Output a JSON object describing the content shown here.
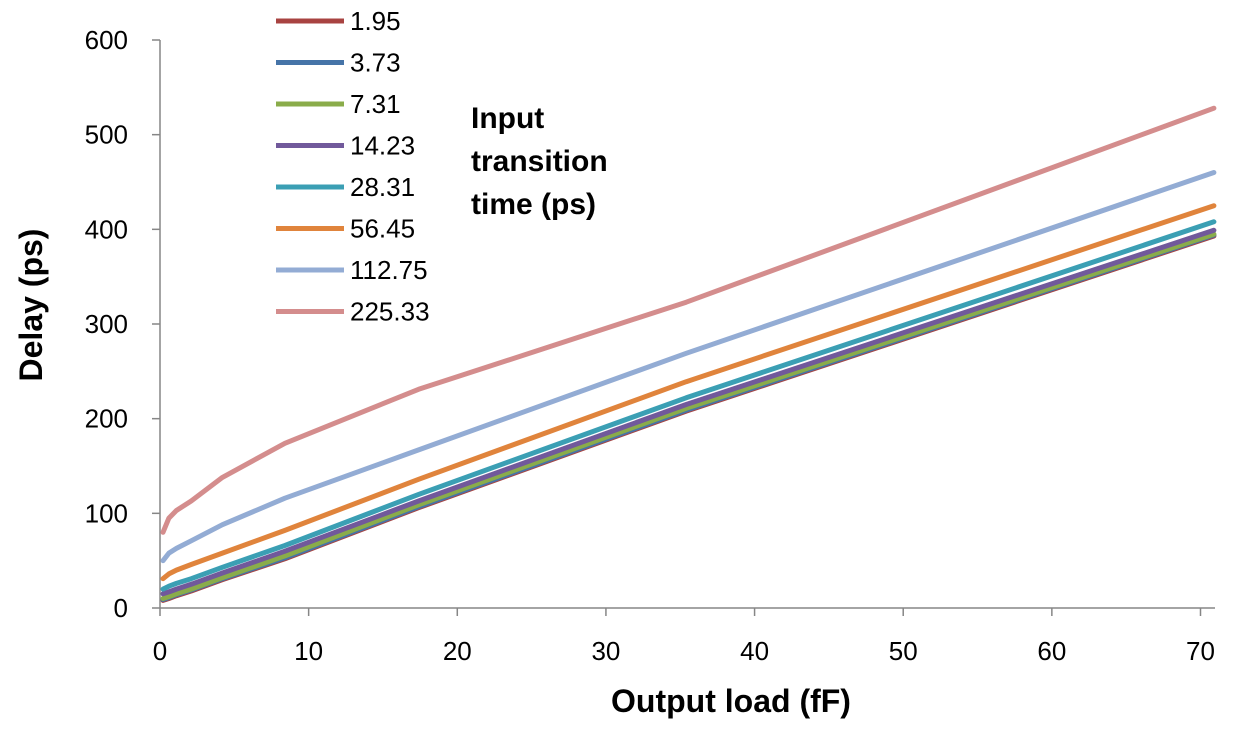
{
  "chart_data": {
    "type": "line",
    "title": "",
    "xlabel": "Output load (fF)",
    "ylabel": "Delay (ps)",
    "xlim": [
      0,
      72
    ],
    "ylim": [
      0,
      600
    ],
    "xticks": [
      "0",
      "10",
      "20",
      "30",
      "40",
      "50",
      "60",
      "70"
    ],
    "yticks": [
      "0",
      "100",
      "200",
      "300",
      "400",
      "500",
      "600"
    ],
    "grid": false,
    "legend_title": [
      "Input",
      "transition",
      "time (ps)"
    ],
    "legend_position": "top-left",
    "x": [
      0.2,
      0.6,
      1.1,
      2.1,
      4.2,
      8.4,
      17.4,
      35.4,
      70.9
    ],
    "series": [
      {
        "name": "1.95",
        "color": "#a84341",
        "values": [
          8,
          10,
          13,
          18,
          30,
          52,
          106,
          208,
          393
        ]
      },
      {
        "name": "3.73",
        "color": "#4674a8",
        "values": [
          9,
          11,
          14,
          19,
          31,
          53,
          107,
          209,
          394
        ]
      },
      {
        "name": "7.31",
        "color": "#8aac4a",
        "values": [
          10,
          12,
          15,
          20,
          32,
          55,
          109,
          211,
          395
        ]
      },
      {
        "name": "14.23",
        "color": "#71599b",
        "values": [
          15,
          17,
          20,
          25,
          37,
          60,
          113,
          215,
          399
        ]
      },
      {
        "name": "28.31",
        "color": "#3b9fb4",
        "values": [
          20,
          23,
          26,
          31,
          43,
          66,
          120,
          222,
          408
        ]
      },
      {
        "name": "56.45",
        "color": "#e0843c",
        "values": [
          31,
          36,
          40,
          46,
          58,
          82,
          136,
          239,
          425
        ]
      },
      {
        "name": "112.75",
        "color": "#93acd4",
        "values": [
          50,
          58,
          63,
          71,
          88,
          116,
          167,
          269,
          460
        ]
      },
      {
        "name": "225.33",
        "color": "#d48d8d",
        "values": [
          80,
          95,
          103,
          113,
          138,
          174,
          231,
          323,
          528
        ]
      }
    ]
  }
}
